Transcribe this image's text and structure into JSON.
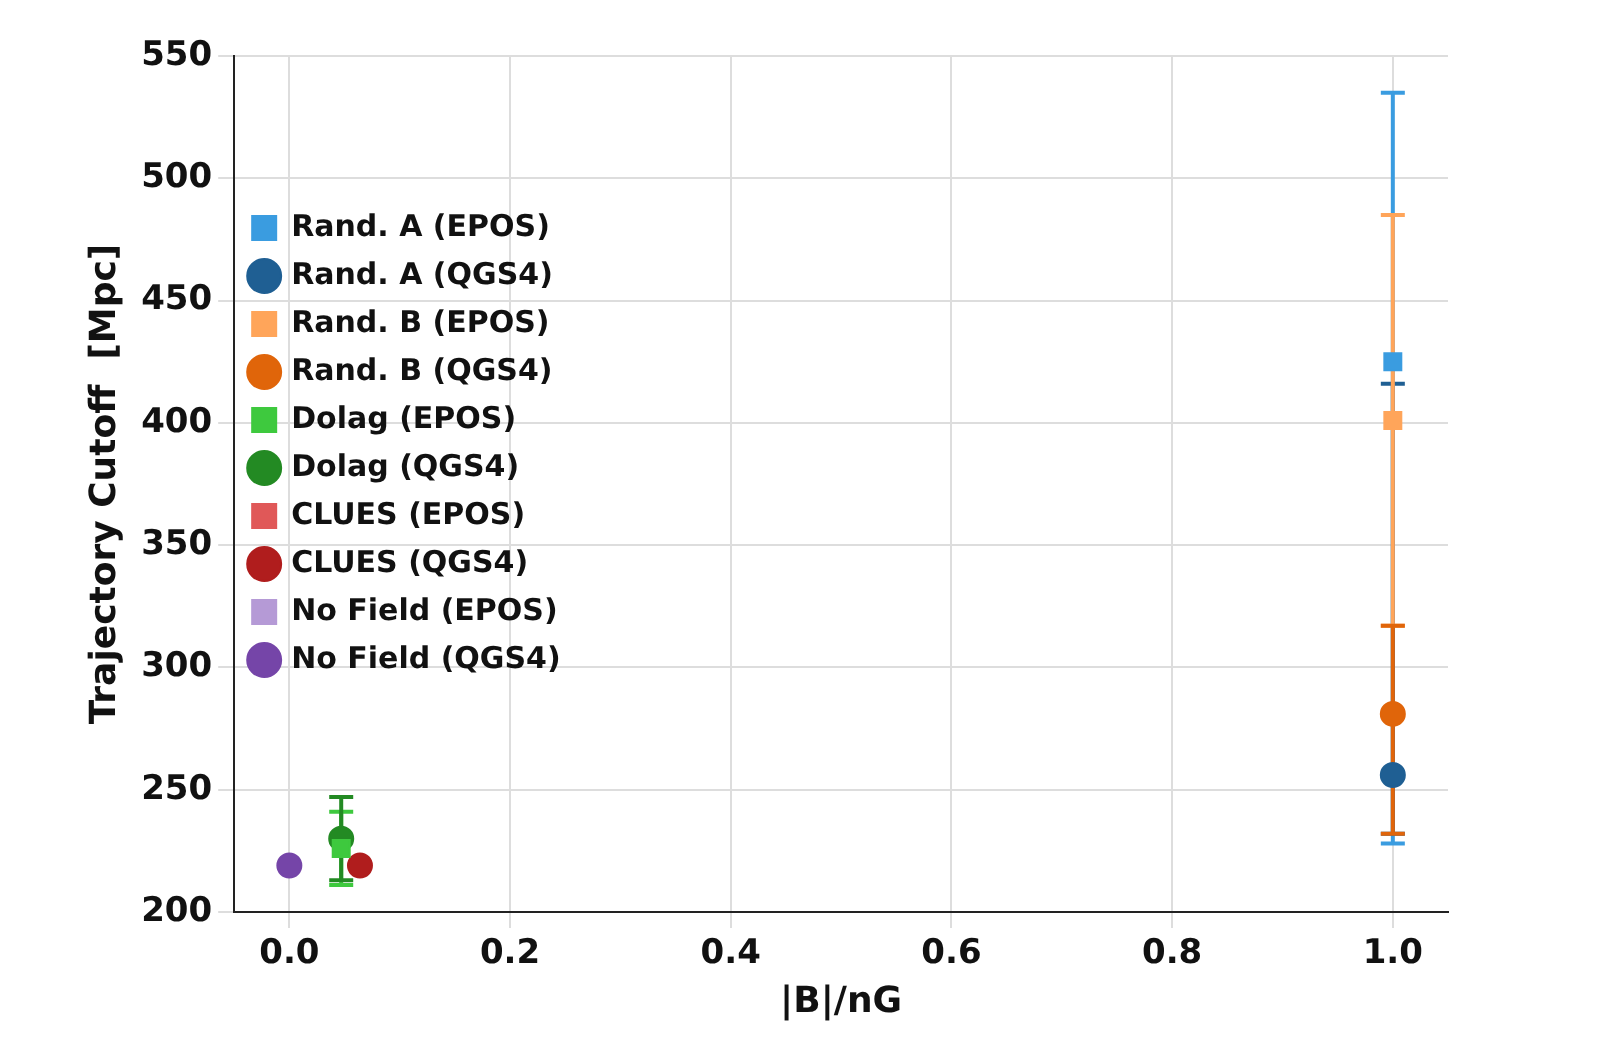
{
  "chart_data": {
    "type": "scatter",
    "xlabel": "|B|/nG",
    "ylabel": "Trajectory Cutoff  [Mpc]",
    "xlim": [
      -0.05,
      1.05
    ],
    "xticks": [
      {
        "value": 0,
        "label": "0.0"
      },
      0.2,
      0.4,
      0.6,
      0.8,
      {
        "value": 1,
        "label": "1.0"
      }
    ],
    "ylim": [
      200,
      550
    ],
    "yticks": [
      200,
      250,
      300,
      350,
      400,
      450,
      500,
      550
    ],
    "grid": true,
    "legend": "top",
    "series": [
      {
        "name": "Rand. A (EPOS)",
        "color": "#3a9ce0",
        "marker": "square",
        "x": [
          1
        ],
        "values": [
          425
        ],
        "errors": [
          [
            228,
            535
          ]
        ]
      },
      {
        "name": "Rand. A (QGS4)",
        "color": "#1f5f93",
        "marker": "circle",
        "x": [
          1
        ],
        "values": [
          256
        ],
        "errors": [
          [
            232,
            416
          ]
        ]
      },
      {
        "name": "Rand. B (EPOS)",
        "color": "#ffa55a",
        "marker": "square",
        "x": [
          1
        ],
        "values": [
          401
        ],
        "errors": [
          [
            317,
            485
          ]
        ]
      },
      {
        "name": "Rand. B (QGS4)",
        "color": "#e0650a",
        "marker": "circle",
        "x": [
          1
        ],
        "values": [
          281
        ],
        "errors": [
          [
            232,
            317
          ]
        ]
      },
      {
        "name": "Dolag (EPOS)",
        "color": "#3ec93e",
        "marker": "square",
        "x": [
          0.047
        ],
        "values": [
          226
        ],
        "errors": [
          15
        ]
      },
      {
        "name": "Dolag (QGS4)",
        "color": "#238a23",
        "marker": "circle",
        "x": [
          0.047
        ],
        "values": [
          230
        ],
        "errors": [
          17
        ]
      },
      {
        "name": "CLUES (EPOS)",
        "color": "#e05858",
        "marker": "square"
      },
      {
        "name": "CLUES (QGS4)",
        "color": "#b01d1d",
        "marker": "circle",
        "x": [
          0.064
        ],
        "values": [
          219
        ]
      },
      {
        "name": "No Field (EPOS)",
        "color": "#b59ad6",
        "marker": "square"
      },
      {
        "name": "No Field (QGS4)",
        "color": "#7545a8",
        "marker": "circle",
        "x": [
          0
        ],
        "values": [
          219
        ]
      }
    ]
  }
}
